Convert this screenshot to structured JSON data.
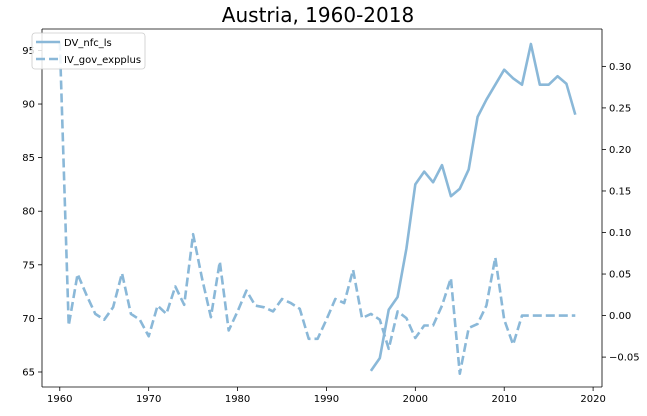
{
  "chart_data": {
    "type": "line",
    "title": "Austria, 1960-2018",
    "xlabel": "",
    "ylabel": "",
    "xlim": [
      1958,
      2021
    ],
    "ylim_left": [
      63.6,
      97.0
    ],
    "ylim_right": [
      -0.086,
      0.345
    ],
    "x_ticks": [
      1960,
      1970,
      1980,
      1990,
      2000,
      2010,
      2020
    ],
    "y_ticks_left": [
      65,
      70,
      75,
      80,
      85,
      90,
      95
    ],
    "y_ticks_right": [
      -0.05,
      0.0,
      0.05,
      0.1,
      0.15,
      0.2,
      0.25,
      0.3
    ],
    "y_tick_labels_right": [
      "−0.05",
      "0.00",
      "0.05",
      "0.10",
      "0.15",
      "0.20",
      "0.25",
      "0.30"
    ],
    "legend_position": "top-left",
    "grid": false,
    "series": [
      {
        "name": "DV_nfc_ls",
        "axis": "left",
        "style": "solid",
        "color": "#8ab8d8",
        "x": [
          1995,
          1996,
          1997,
          1998,
          1999,
          2000,
          2001,
          2002,
          2003,
          2004,
          2005,
          2006,
          2007,
          2008,
          2009,
          2010,
          2011,
          2012,
          2013,
          2014,
          2015,
          2016,
          2017,
          2018
        ],
        "y": [
          65.1,
          66.3,
          70.8,
          72.0,
          76.5,
          82.5,
          83.7,
          82.7,
          84.3,
          81.4,
          82.1,
          83.9,
          88.8,
          90.4,
          91.8,
          93.2,
          92.4,
          91.8,
          95.6,
          91.8,
          91.8,
          92.6,
          91.9,
          89.0
        ]
      },
      {
        "name": "IV_gov_expplus",
        "axis": "right",
        "style": "dashed",
        "color": "#8ab8d8",
        "x": [
          1960,
          1961,
          1962,
          1963,
          1964,
          1965,
          1966,
          1967,
          1968,
          1969,
          1970,
          1971,
          1972,
          1973,
          1974,
          1975,
          1976,
          1977,
          1978,
          1979,
          1980,
          1981,
          1982,
          1983,
          1984,
          1985,
          1986,
          1987,
          1988,
          1989,
          1990,
          1991,
          1992,
          1993,
          1994,
          1995,
          1996,
          1997,
          1998,
          1999,
          2000,
          2001,
          2002,
          2003,
          2004,
          2005,
          2006,
          2007,
          2008,
          2009,
          2010,
          2011,
          2012,
          2013,
          2014,
          2015,
          2016,
          2017,
          2018
        ],
        "y": [
          0.33,
          -0.012,
          0.05,
          0.025,
          0.002,
          -0.005,
          0.01,
          0.051,
          0.002,
          -0.005,
          -0.025,
          0.012,
          0.002,
          0.035,
          0.013,
          0.098,
          0.045,
          -0.002,
          0.065,
          -0.018,
          0.005,
          0.03,
          0.012,
          0.01,
          0.005,
          0.02,
          0.015,
          0.008,
          -0.028,
          -0.028,
          -0.005,
          0.02,
          0.015,
          0.055,
          -0.003,
          0.002,
          -0.005,
          -0.04,
          0.005,
          -0.003,
          -0.027,
          -0.012,
          -0.012,
          0.012,
          0.045,
          -0.07,
          -0.015,
          -0.01,
          0.012,
          0.07,
          -0.005,
          -0.035,
          0.0,
          0.0,
          0.0,
          0.0,
          0.0,
          0.0,
          0.0
        ]
      }
    ]
  }
}
